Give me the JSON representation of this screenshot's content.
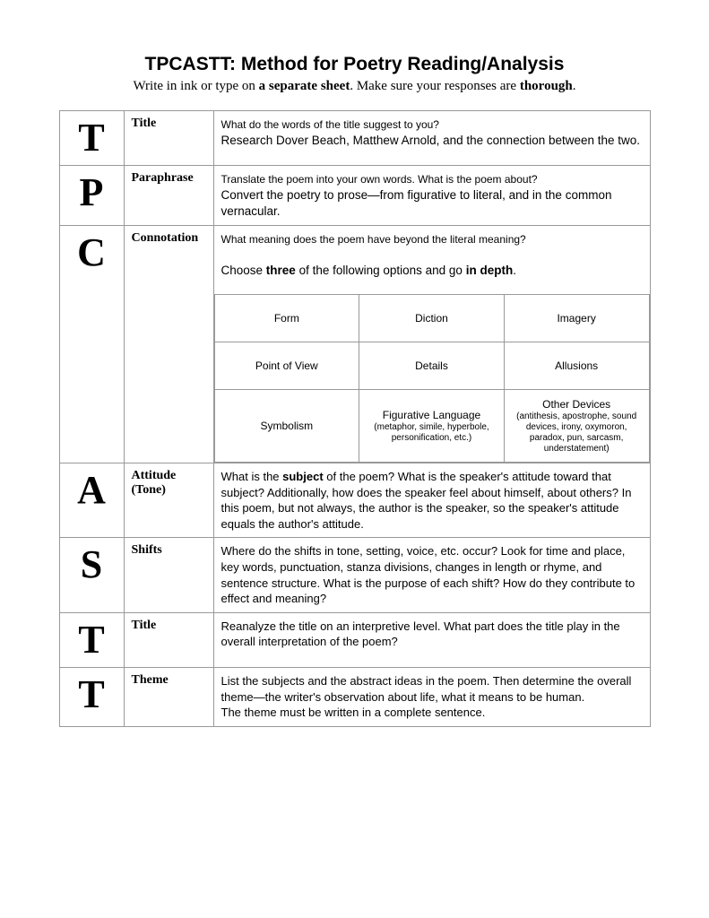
{
  "heading": "TPCASTT: Method for Poetry Reading/Analysis",
  "sub_pre": "Write in ink or type on ",
  "sub_bold1": "a separate sheet",
  "sub_mid": ". Make sure your responses are ",
  "sub_bold2": "thorough",
  "sub_end": ".",
  "rows": [
    {
      "letter": "T",
      "label": "Title",
      "prompt": "What do the words of the title suggest to you?",
      "inst": "Research Dover Beach, Matthew Arnold, and the connection between the two."
    },
    {
      "letter": "P",
      "label": "Paraphrase",
      "prompt": "Translate the poem into your own words. What is the poem about?",
      "inst": "Convert the poetry to prose—from figurative to literal, and in the common vernacular."
    },
    {
      "letter": "C",
      "label": "Connotation",
      "prompt": "What meaning does the poem have beyond the literal meaning?",
      "inst_pre": "Choose ",
      "inst_b1": "three",
      "inst_mid": " of the following options and go ",
      "inst_b2": "in depth",
      "inst_end": ".",
      "grid": [
        [
          "Form",
          "Diction",
          "Imagery"
        ],
        [
          "Point of View",
          "Details",
          "Allusions"
        ],
        [
          "Symbolism",
          "Figurative Language",
          "Other Devices"
        ]
      ],
      "grid_sub": {
        "r2c1": "(metaphor, simile, hyperbole, personification, etc.)",
        "r2c2": "(antithesis, apostrophe, sound devices, irony, oxymoron, paradox, pun, sarcasm, understatement)"
      }
    },
    {
      "letter": "A",
      "label": "Attitude (Tone)",
      "html": "What is the <b>subject</b> of the poem? What is the speaker's attitude toward that subject? Additionally, how does the speaker feel about himself, about others? In this poem, but not always, the author is the speaker, so the speaker's attitude equals the author's attitude."
    },
    {
      "letter": "S",
      "label": "Shifts",
      "text": "Where do the shifts in tone, setting, voice, etc. occur? Look for time and place, key words, punctuation, stanza divisions, changes in length or rhyme, and sentence structure. What is the purpose of each shift? How do they contribute to effect and meaning?"
    },
    {
      "letter": "T",
      "label": "Title",
      "text": "Reanalyze the title on an interpretive level. What part does the title play in the overall interpretation of the poem?"
    },
    {
      "letter": "T",
      "label": "Theme",
      "text": "List the subjects and the abstract ideas in the poem. Then determine the overall theme—the writer's observation about life, what it means to be human.\nThe theme must be written in a complete sentence."
    }
  ]
}
